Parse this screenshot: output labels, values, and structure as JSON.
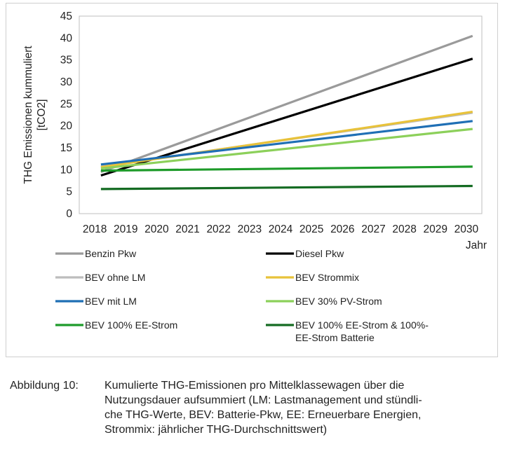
{
  "chart_data": {
    "type": "line",
    "title": "",
    "ylabel": "THG Emissionen kummuliert [tCO2]",
    "ylabel_lines": [
      "THG Emissionen kummuliert",
      "[tCO2]"
    ],
    "xlabel": "Jahr",
    "ylim": [
      0,
      45
    ],
    "yticks": [
      0,
      5,
      10,
      15,
      20,
      25,
      30,
      35,
      40,
      45
    ],
    "x": [
      2018,
      2019,
      2020,
      2021,
      2022,
      2023,
      2024,
      2025,
      2026,
      2027,
      2028,
      2029,
      2030
    ],
    "xlim": [
      2017.5,
      2030.5
    ],
    "grid": false,
    "legend_position": "bottom",
    "series": [
      {
        "name": "Benzin Pkw",
        "color": "#9a9a9a",
        "x": [
          2018.2,
          2030.2
        ],
        "values": [
          9.5,
          40.5
        ]
      },
      {
        "name": "Diesel Pkw",
        "color": "#000000",
        "x": [
          2018.2,
          2030.2
        ],
        "values": [
          8.7,
          35.3
        ]
      },
      {
        "name": "BEV ohne LM",
        "color": "#bdbdbd",
        "x": [
          2018.2,
          2030.2
        ],
        "values": [
          10.7,
          23.0
        ]
      },
      {
        "name": "BEV Strommix",
        "color": "#e8c23a",
        "x": [
          2018.2,
          2030.2
        ],
        "values": [
          10.6,
          23.2
        ]
      },
      {
        "name": "BEV mit LM",
        "color": "#1f6fb5",
        "x": [
          2018.2,
          2030.2
        ],
        "values": [
          11.2,
          21.1
        ]
      },
      {
        "name": "BEV 30% PV-Strom",
        "color": "#8cd05a",
        "x": [
          2018.2,
          2030.2
        ],
        "values": [
          10.3,
          19.3
        ]
      },
      {
        "name": "BEV 100% EE-Strom",
        "color": "#1e9b2a",
        "x": [
          2018.2,
          2030.2
        ],
        "values": [
          9.8,
          10.7
        ]
      },
      {
        "name": "BEV 100% EE-Strom & 100%-EE-Strom Batterie",
        "color": "#146b22",
        "x": [
          2018.2,
          2030.2
        ],
        "values": [
          5.6,
          6.3
        ]
      }
    ]
  },
  "legend": [
    {
      "lines": [
        "Benzin Pkw"
      ],
      "color": "#9a9a9a"
    },
    {
      "lines": [
        "Diesel Pkw"
      ],
      "color": "#000000"
    },
    {
      "lines": [
        "BEV ohne LM"
      ],
      "color": "#bdbdbd"
    },
    {
      "lines": [
        "BEV Strommix"
      ],
      "color": "#e8c23a"
    },
    {
      "lines": [
        "BEV mit LM"
      ],
      "color": "#1f6fb5"
    },
    {
      "lines": [
        "BEV 30% PV-Strom"
      ],
      "color": "#8cd05a"
    },
    {
      "lines": [
        "BEV 100% EE-Strom"
      ],
      "color": "#1e9b2a"
    },
    {
      "lines": [
        "BEV 100% EE-Strom & 100%-",
        "EE-Strom Batterie"
      ],
      "color": "#146b22"
    }
  ],
  "caption": {
    "label": "Abbildung 10:",
    "lines": [
      "Kumulierte THG-Emissionen pro Mittelklassewagen über die",
      "Nutzungsdauer aufsummiert (LM: Lastmanagement und stündli-",
      "che THG-Werte, BEV: Batterie-Pkw, EE: Erneuerbare Energien,",
      "Strommix: jährlicher THG-Durchschnittswert)"
    ]
  }
}
